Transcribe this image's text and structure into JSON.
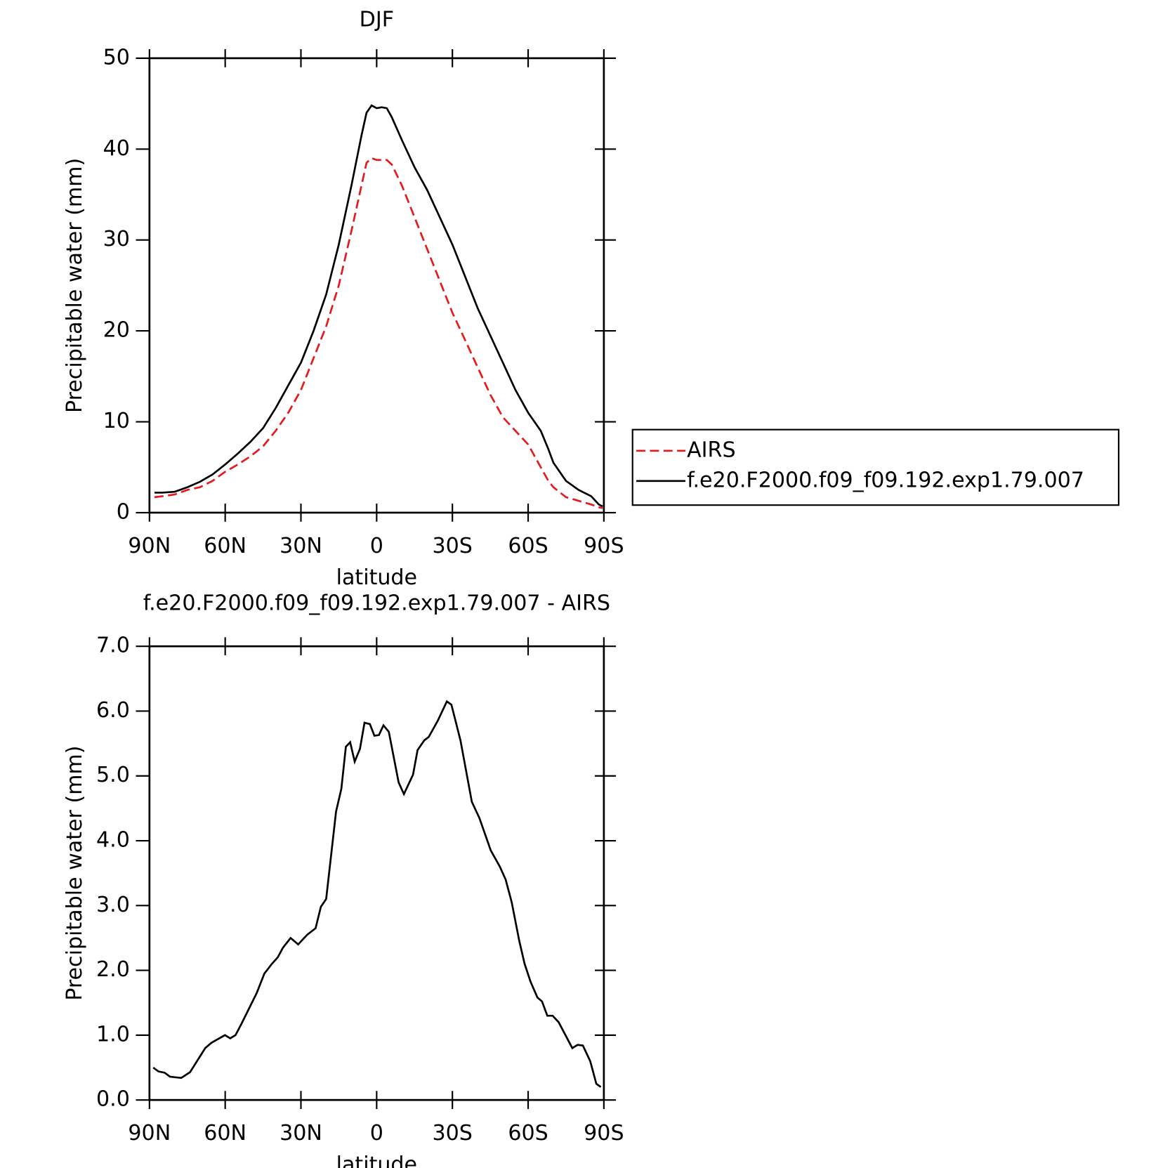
{
  "chart_data": [
    {
      "type": "line",
      "title": "DJF",
      "x_label": "latitude",
      "y_label": "Precipitable water (mm)",
      "xlim": [
        90,
        -90
      ],
      "ylim": [
        0,
        50
      ],
      "xticks": [
        {
          "value": 90,
          "label": "90N"
        },
        {
          "value": 60,
          "label": "60N"
        },
        {
          "value": 30,
          "label": "30N"
        },
        0,
        {
          "value": -30,
          "label": "30S"
        },
        {
          "value": -60,
          "label": "60S"
        },
        {
          "value": -90,
          "label": "90S"
        }
      ],
      "yticks": [
        0,
        10,
        20,
        30,
        40,
        50
      ],
      "legend": "right",
      "x": [
        88,
        85,
        80,
        75,
        70,
        65,
        60,
        55,
        50,
        45,
        40,
        35,
        30,
        25,
        20,
        15,
        10,
        6,
        4,
        2,
        0,
        -2,
        -4,
        -6,
        -10,
        -15,
        -20,
        -25,
        -30,
        -35,
        -40,
        -45,
        -50,
        -55,
        -60,
        -65,
        -68,
        -70,
        -75,
        -80,
        -85,
        -88,
        -89.5
      ],
      "series": [
        {
          "name": "AIRS",
          "color": "#e41a1c",
          "dashed": true,
          "values": [
            1.7,
            1.8,
            2,
            2.5,
            2.8,
            3.5,
            4.5,
            5.3,
            6.2,
            7.3,
            9,
            11,
            13.5,
            17,
            20.5,
            25,
            31,
            36,
            38.5,
            39,
            38.8,
            38.8,
            38.8,
            38.3,
            36,
            32.5,
            29,
            25.5,
            22,
            19,
            16,
            13,
            10.5,
            9,
            7.5,
            5,
            3.5,
            2.8,
            1.7,
            1.3,
            0.9,
            0.6,
            0.5
          ]
        },
        {
          "name": "f.e20.F2000.f09_f09.192.exp1.79.007",
          "color": "#000000",
          "dashed": false,
          "values": [
            2.2,
            2.2,
            2.3,
            2.8,
            3.4,
            4.2,
            5.3,
            6.5,
            7.8,
            9.3,
            11.5,
            14,
            16.5,
            20,
            24,
            29.5,
            36,
            41.5,
            44,
            44.8,
            44.5,
            44.6,
            44.5,
            43.5,
            41,
            38,
            35.5,
            32.5,
            29.5,
            26,
            22.5,
            19.5,
            16.5,
            13.5,
            11,
            9,
            7,
            5.5,
            3.5,
            2.5,
            1.8,
            0.9,
            0.7
          ]
        }
      ]
    },
    {
      "type": "line",
      "title": "f.e20.F2000.f09_f09.192.exp1.79.007 - AIRS",
      "x_label": "latitude",
      "y_label": "Precipitable water (mm)",
      "xlim": [
        90,
        -90
      ],
      "ylim": [
        0,
        7
      ],
      "xticks": [
        {
          "value": 90,
          "label": "90N"
        },
        {
          "value": 60,
          "label": "60N"
        },
        {
          "value": 30,
          "label": "30N"
        },
        0,
        {
          "value": -30,
          "label": "30S"
        },
        {
          "value": -60,
          "label": "60S"
        },
        {
          "value": -90,
          "label": "90S"
        }
      ],
      "yticks": [
        {
          "value": 0,
          "label": "0.0"
        },
        {
          "value": 1,
          "label": "1.0"
        },
        {
          "value": 2,
          "label": "2.0"
        },
        {
          "value": 3,
          "label": "3.0"
        },
        {
          "value": 4,
          "label": "4.0"
        },
        {
          "value": 5,
          "label": "5.0"
        },
        {
          "value": 6,
          "label": "6.0"
        },
        {
          "value": 7,
          "label": "7.0"
        }
      ],
      "color": "#000000",
      "x": [
        88.5,
        86.4,
        84,
        81.9,
        77.4,
        73.9,
        67.9,
        65.5,
        60.1,
        58,
        55.9,
        53.5,
        47.5,
        44.5,
        41.5,
        39.2,
        37.1,
        34.1,
        31.1,
        27.5,
        24.2,
        22.1,
        20,
        16.1,
        14,
        12.2,
        10.5,
        8.7,
        6.6,
        4.8,
        2.7,
        0.9,
        -0.9,
        -2.7,
        -4.8,
        -8.7,
        -10.8,
        -14.4,
        -16.2,
        -18.9,
        -20.6,
        -24.2,
        -27.8,
        -29.6,
        -33.2,
        -37.7,
        -40.7,
        -45.2,
        -48.8,
        -51.1,
        -53.5,
        -56.5,
        -58.6,
        -61,
        -63.7,
        -65.5,
        -67.6,
        -69.7,
        -72.1,
        -77.5,
        -79.6,
        -81.7,
        -84.6,
        -87,
        -88.8
      ],
      "values": [
        0.5,
        0.44,
        0.42,
        0.36,
        0.34,
        0.43,
        0.8,
        0.88,
        1,
        0.95,
        1,
        1.18,
        1.65,
        1.95,
        2.1,
        2.2,
        2.35,
        2.5,
        2.4,
        2.55,
        2.65,
        2.98,
        3.1,
        4.45,
        4.8,
        5.45,
        5.52,
        5.22,
        5.42,
        5.82,
        5.8,
        5.62,
        5.63,
        5.78,
        5.68,
        4.9,
        4.72,
        5.02,
        5.4,
        5.55,
        5.6,
        5.85,
        6.15,
        6.1,
        5.55,
        4.6,
        4.35,
        3.85,
        3.6,
        3.4,
        3.05,
        2.45,
        2.1,
        1.82,
        1.58,
        1.52,
        1.3,
        1.3,
        1.2,
        0.8,
        0.85,
        0.84,
        0.6,
        0.25,
        0.2
      ]
    }
  ]
}
